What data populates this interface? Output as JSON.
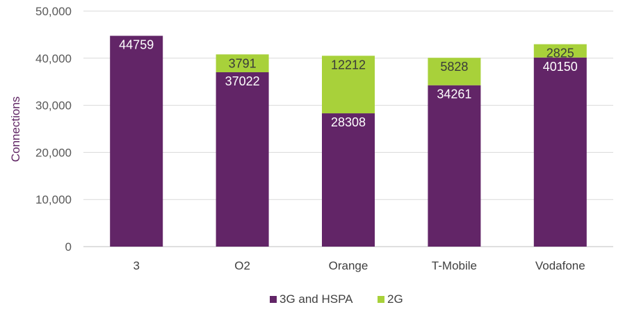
{
  "chart_data": {
    "type": "bar",
    "stacked": true,
    "categories": [
      "3",
      "O2",
      "Orange",
      "T-Mobile",
      "Vodafone"
    ],
    "series": [
      {
        "name": "3G and HSPA",
        "color": "#622567",
        "label_color": "#ffffff",
        "values": [
          44759,
          37022,
          28308,
          34261,
          40150
        ]
      },
      {
        "name": "2G",
        "color": "#a8d13a",
        "label_color": "#3a3a3a",
        "values": [
          null,
          3791,
          12212,
          5828,
          2825
        ]
      }
    ],
    "ylabel": "Connections",
    "xlabel": "",
    "ylim": [
      0,
      50000
    ],
    "yticks": [
      0,
      10000,
      20000,
      30000,
      40000,
      50000
    ],
    "ytick_labels": [
      "0",
      "10,000",
      "20,000",
      "30,000",
      "40,000",
      "50,000"
    ],
    "grid": true,
    "legend_position": "bottom"
  }
}
